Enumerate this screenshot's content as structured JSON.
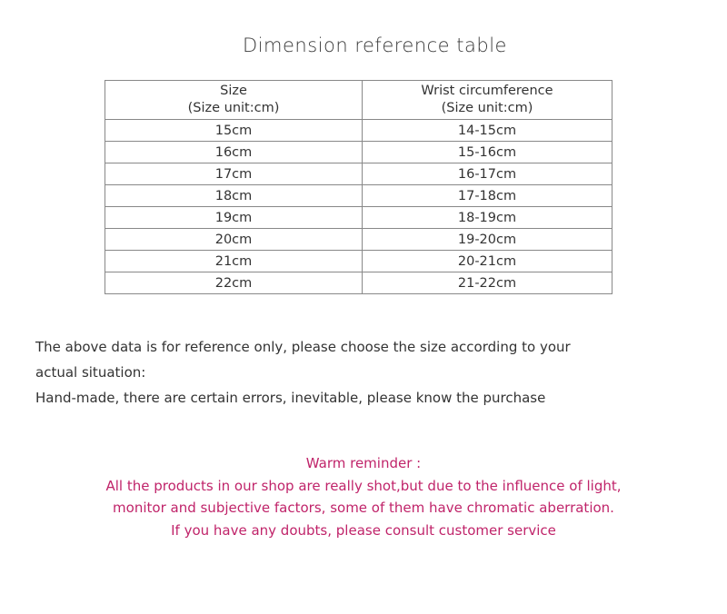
{
  "title": "Dimension reference table",
  "table": {
    "headers": [
      {
        "line1": "Size",
        "line2": "(Size unit:cm)"
      },
      {
        "line1": "Wrist circumference",
        "line2": "(Size unit:cm)"
      }
    ],
    "rows": [
      [
        "15cm",
        "14-15cm"
      ],
      [
        "16cm",
        "15-16cm"
      ],
      [
        "17cm",
        "16-17cm"
      ],
      [
        "18cm",
        "17-18cm"
      ],
      [
        "19cm",
        "18-19cm"
      ],
      [
        "20cm",
        "19-20cm"
      ],
      [
        "21cm",
        "20-21cm"
      ],
      [
        "22cm",
        "21-22cm"
      ]
    ]
  },
  "note": {
    "line1": "The above data is for reference only, please choose the size according to your",
    "line2": "actual situation:",
    "line3": "Hand-made, there are certain errors, inevitable, please know the purchase"
  },
  "reminder": {
    "title": "Warm reminder :",
    "line1": "All the products in our shop are really shot,but due to the influence of light,",
    "line2": "monitor and subjective factors, some of them have chromatic aberration.",
    "line3": "If you have any doubts, please consult customer service",
    "color": "#c0246a"
  }
}
